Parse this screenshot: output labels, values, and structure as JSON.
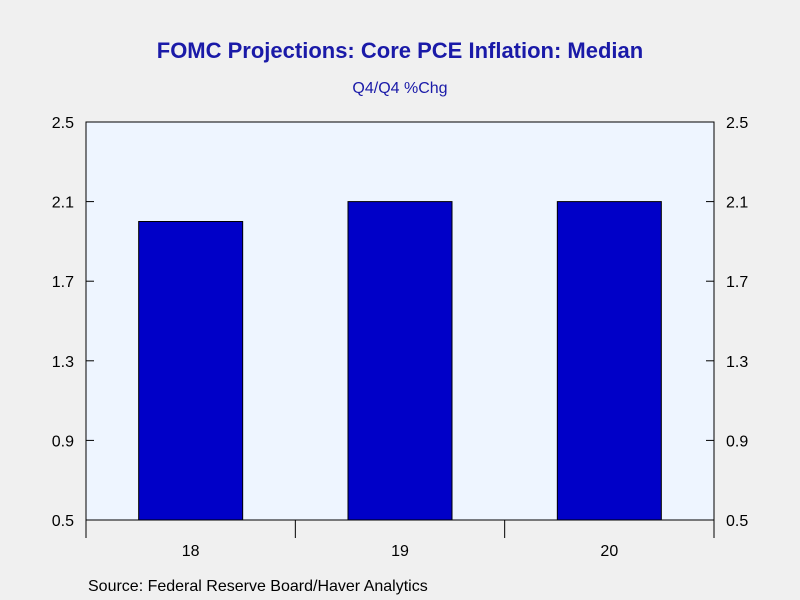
{
  "chart_data": {
    "type": "bar",
    "title": "FOMC Projections: Core PCE Inflation: Median",
    "subtitle": "Q4/Q4 %Chg",
    "categories": [
      "18",
      "19",
      "20"
    ],
    "values": [
      2.0,
      2.1,
      2.1
    ],
    "ylim": [
      0.5,
      2.5
    ],
    "yticks": [
      "0.5",
      "0.9",
      "1.3",
      "1.7",
      "2.1",
      "2.5"
    ],
    "bar_color": "#0000c8",
    "plot_bg": "#eef5ff",
    "grid": false,
    "axes": "left-and-right"
  },
  "source": "Source:  Federal Reserve Board/Haver Analytics"
}
